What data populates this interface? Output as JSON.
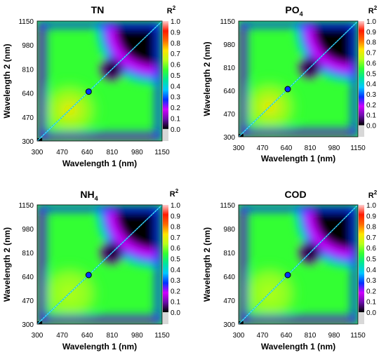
{
  "chart_data": [
    {
      "type": "heatmap",
      "title": "TN",
      "xlabel": "Wavelength 1 (nm)",
      "ylabel": "Wavelength 2 (nm)",
      "x_ticks": [
        "300",
        "470",
        "640",
        "810",
        "980",
        "1150"
      ],
      "y_ticks": [
        "300",
        "470",
        "640",
        "810",
        "980",
        "1150"
      ],
      "xlim": [
        300,
        1150
      ],
      "ylim": [
        300,
        1150
      ],
      "colorbar_label": "R",
      "colorbar_label_sup": "2",
      "colorbar_ticks": [
        "1.0",
        "0.9",
        "0.8",
        "0.7",
        "0.6",
        "0.5",
        "0.4",
        "0.3",
        "0.2",
        "0.1",
        "0.0"
      ],
      "colorbar_range": [
        0,
        1
      ],
      "approx_max_r2": 0.75,
      "symmetric": true
    },
    {
      "type": "heatmap",
      "title": "PO",
      "title_sub": "4",
      "xlabel": "Wavelength 1 (nm)",
      "ylabel": "Wavelength 2 (nm)",
      "x_ticks": [
        "300",
        "470",
        "640",
        "810",
        "980",
        "1150"
      ],
      "y_ticks": [
        "300",
        "470",
        "640",
        "810",
        "980",
        "1150"
      ],
      "xlim": [
        300,
        1150
      ],
      "ylim": [
        300,
        1150
      ],
      "colorbar_label": "R",
      "colorbar_label_sup": "2",
      "colorbar_ticks": [
        "1.0",
        "0.9",
        "0.8",
        "0.7",
        "0.6",
        "0.5",
        "0.4",
        "0.3",
        "0.2",
        "0.1",
        "0.0"
      ],
      "colorbar_range": [
        0,
        1
      ],
      "approx_max_r2": 0.8,
      "symmetric": true
    },
    {
      "type": "heatmap",
      "title": "NH",
      "title_sub": "4",
      "xlabel": "Wavelength 1 (nm)",
      "ylabel": "Wavelength 2 (nm)",
      "x_ticks": [
        "300",
        "470",
        "640",
        "810",
        "980",
        "1150"
      ],
      "y_ticks": [
        "300",
        "470",
        "640",
        "810",
        "980",
        "1150"
      ],
      "xlim": [
        300,
        1150
      ],
      "ylim": [
        300,
        1150
      ],
      "colorbar_label": "R",
      "colorbar_label_sup": "2",
      "colorbar_ticks": [
        "1.0",
        "0.9",
        "0.8",
        "0.7",
        "0.6",
        "0.5",
        "0.4",
        "0.3",
        "0.2",
        "0.1",
        "0.0"
      ],
      "colorbar_range": [
        0,
        1
      ],
      "approx_max_r2": 0.6,
      "symmetric": true
    },
    {
      "type": "heatmap",
      "title": "COD",
      "xlabel": "Wavelength 1 (nm)",
      "ylabel": "Wavelength 2 (nm)",
      "x_ticks": [
        "300",
        "470",
        "640",
        "810",
        "980",
        "1150"
      ],
      "y_ticks": [
        "300",
        "470",
        "640",
        "810",
        "980",
        "1150"
      ],
      "xlim": [
        300,
        1150
      ],
      "ylim": [
        300,
        1150
      ],
      "colorbar_label": "R",
      "colorbar_label_sup": "2",
      "colorbar_ticks": [
        "1.0",
        "0.9",
        "0.8",
        "0.7",
        "0.6",
        "0.5",
        "0.4",
        "0.3",
        "0.2",
        "0.1",
        "0.0"
      ],
      "colorbar_range": [
        0,
        1
      ],
      "approx_max_r2": 0.6,
      "symmetric": true
    }
  ],
  "colormap": [
    "#000000",
    "#6a0da8",
    "#d000ff",
    "#0033ff",
    "#00c8ff",
    "#00e69a",
    "#33ff33",
    "#b8ff1a",
    "#ffe600",
    "#ff6a00",
    "#ff1a00",
    "#ffd0d0"
  ]
}
